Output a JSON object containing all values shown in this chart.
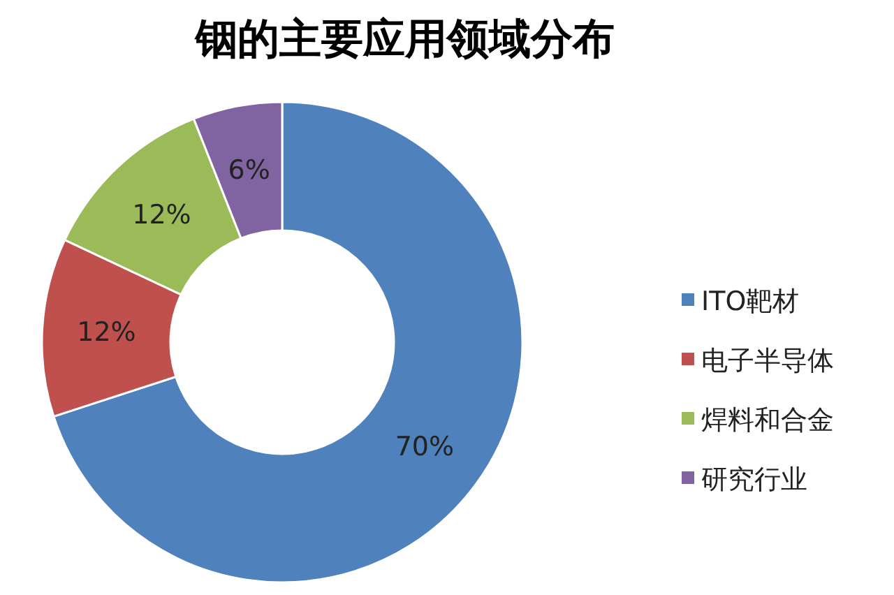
{
  "chart_data": {
    "type": "donut",
    "title": "铟的主要应用领域分布",
    "categories": [
      "ITO靶材",
      "电子半导体",
      "焊料和合金",
      "研究行业"
    ],
    "values": [
      70,
      12,
      12,
      6
    ],
    "colors": [
      "#4f81bd",
      "#c0504d",
      "#9bbb59",
      "#8064a2"
    ],
    "value_labels": [
      "70%",
      "12%",
      "12%",
      "6%"
    ],
    "legend": "right"
  }
}
